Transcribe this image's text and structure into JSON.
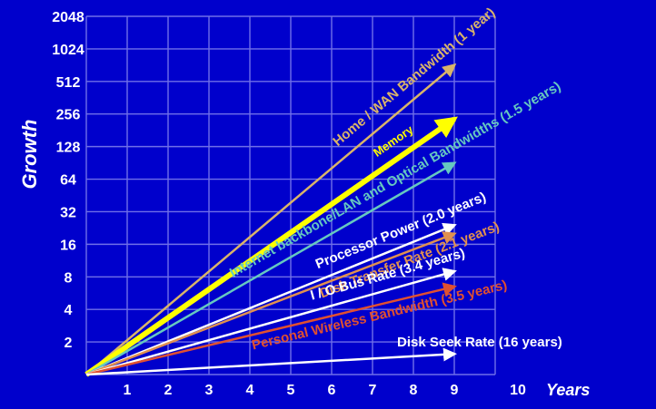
{
  "chart_data": {
    "type": "line",
    "ylabel": "Growth",
    "xlabel": "Years",
    "y_scale": "log2",
    "ylim": [
      1,
      2048
    ],
    "xlim": [
      0,
      10
    ],
    "grid": true,
    "y_tick_labels": [
      "2",
      "4",
      "8",
      "16",
      "32",
      "64",
      "128",
      "256",
      "512",
      "1024",
      "2048"
    ],
    "x_tick_labels": [
      "1",
      "2",
      "3",
      "4",
      "5",
      "6",
      "7",
      "8",
      "9",
      "10"
    ],
    "series": [
      {
        "name": "Home / WAN Bandwidth (1 year)",
        "x": [
          0,
          9
        ],
        "y": [
          1,
          724
        ],
        "color": "#d9b46a"
      },
      {
        "name": "Memory",
        "x": [
          0,
          9
        ],
        "y": [
          1,
          230
        ],
        "color": "#ffff00"
      },
      {
        "name": "Internet backbone/LAN and Optical Bandwidths (1.5 years)",
        "x": [
          0,
          9
        ],
        "y": [
          1,
          90
        ],
        "color": "#66c8c0"
      },
      {
        "name": "Processor Power (2.0 years)",
        "x": [
          0,
          9
        ],
        "y": [
          1,
          24
        ],
        "color": "#ffffff"
      },
      {
        "name": "Disk Transfer Rate (2.1 years)",
        "x": [
          0,
          9
        ],
        "y": [
          1,
          20
        ],
        "color": "#e09050"
      },
      {
        "name": "I / O Bus Rate (3.4  years)",
        "x": [
          0,
          9
        ],
        "y": [
          1,
          9
        ],
        "color": "#ffffff"
      },
      {
        "name": "Personal Wireless Bandwidth (3.5 years)",
        "x": [
          0,
          9
        ],
        "y": [
          1,
          6.5
        ],
        "color": "#e05030"
      },
      {
        "name": "Disk Seek Rate (16 years)",
        "x": [
          0,
          9
        ],
        "y": [
          1,
          1.55
        ],
        "color": "#ffffff"
      }
    ]
  },
  "colors": {
    "background": "#0000cc",
    "grid": "#6f6fe8",
    "axis_text": "#ffffff"
  }
}
